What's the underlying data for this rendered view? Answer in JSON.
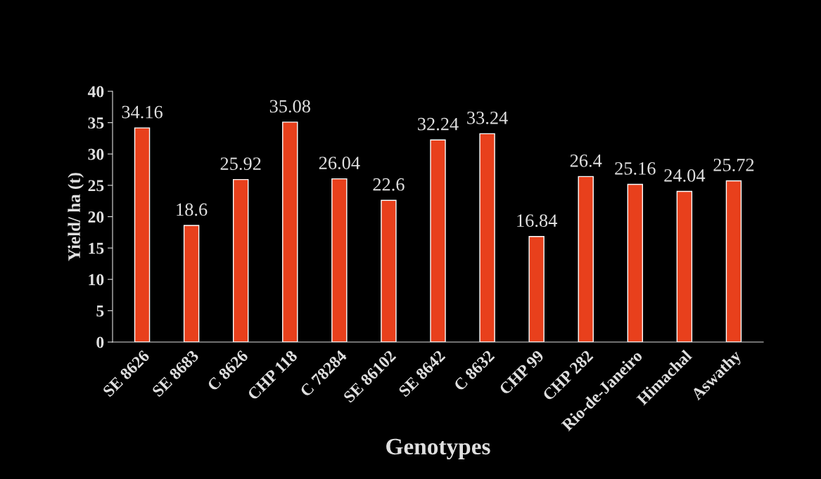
{
  "chart_data": {
    "type": "bar",
    "xlabel": "Genotypes",
    "ylabel": "Yield/ ha (t)",
    "categories": [
      "SE 8626",
      "SE 8683",
      "C 8626",
      "CHP 118",
      "C 78284",
      "SE 86102",
      "SE 8642",
      "C 8632",
      "CHP 99",
      "CHP 282",
      "Rio-de-Janeiro",
      "Himachal",
      "Aswathy"
    ],
    "values": [
      34.16,
      18.6,
      25.92,
      35.08,
      26.04,
      22.6,
      32.24,
      33.24,
      16.84,
      26.4,
      25.16,
      24.04,
      25.72
    ],
    "color": "#e8401c",
    "ylim": [
      0,
      40
    ],
    "yticks": [
      0,
      5,
      10,
      15,
      20,
      25,
      30,
      35,
      40
    ],
    "data_labels": true,
    "grid": false,
    "legend": false
  }
}
